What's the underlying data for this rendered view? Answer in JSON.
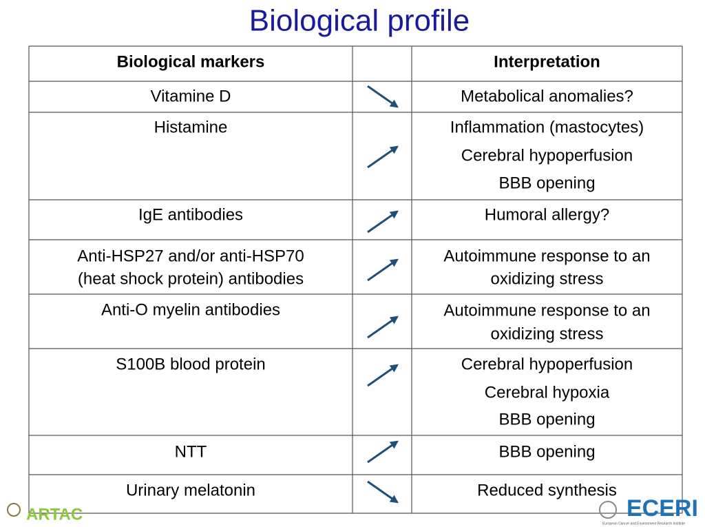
{
  "title": "Biological profile",
  "table": {
    "header": {
      "marker": "Biological markers",
      "interpretation": "Interpretation"
    },
    "rows": [
      {
        "marker": [
          "Vitamine D"
        ],
        "interpretation": [
          "Metabolical anomalies?"
        ]
      },
      {
        "marker": [
          "Histamine"
        ],
        "interpretation": [
          "Inflammation (mastocytes)",
          "Cerebral hypoperfusion",
          "BBB opening"
        ]
      },
      {
        "marker": [
          "IgE antibodies"
        ],
        "interpretation": [
          "Humoral allergy?"
        ]
      },
      {
        "marker": [
          "Anti-HSP27 and/or anti-HSP70",
          "(heat shock protein) antibodies"
        ],
        "interpretation": [
          "Autoimmune response to an",
          "oxidizing stress"
        ]
      },
      {
        "marker": [
          "Anti-O myelin antibodies"
        ],
        "interpretation": [
          "Autoimmune response to an",
          "oxidizing stress"
        ]
      },
      {
        "marker": [
          "S100B blood protein"
        ],
        "interpretation": [
          "Cerebral hypoperfusion",
          "Cerebral hypoxia",
          "BBB opening"
        ]
      },
      {
        "marker": [
          "NTT"
        ],
        "interpretation": [
          "BBB opening"
        ]
      },
      {
        "marker": [
          "Urinary melatonin"
        ],
        "interpretation": [
          "Reduced synthesis"
        ]
      }
    ]
  },
  "logos": {
    "left": "ARTAC",
    "right": "ECERI",
    "right_caption": "European Cancer and Environment Research Institute"
  }
}
